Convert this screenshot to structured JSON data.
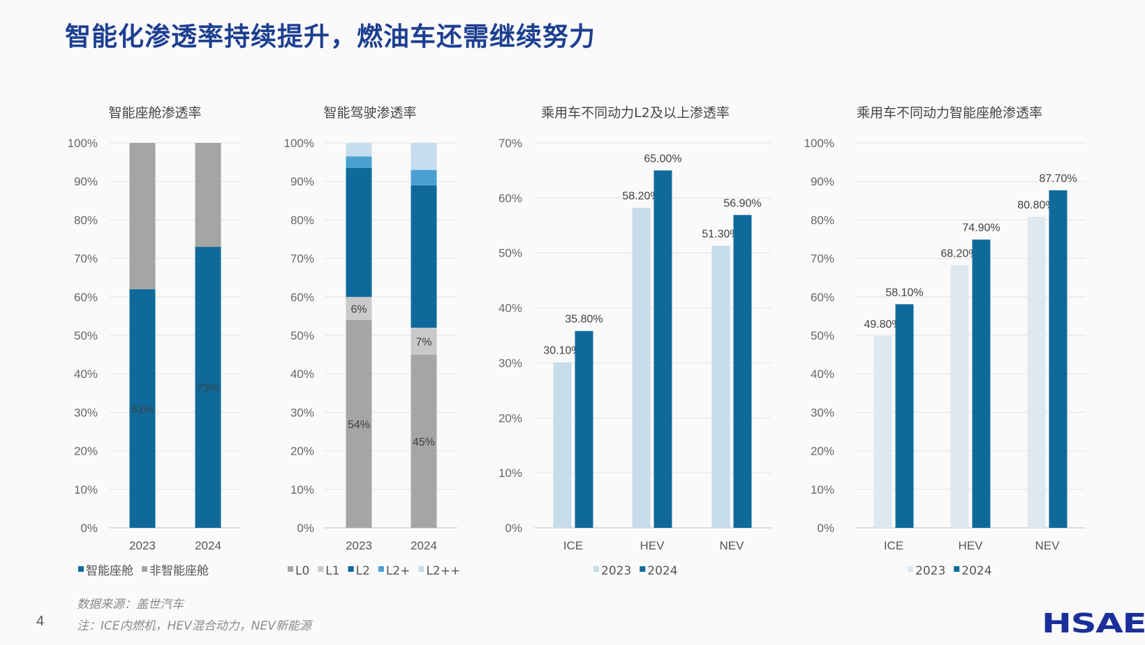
{
  "title": "智能化渗透率持续提升，燃油车还需继续努力",
  "page_number": "4",
  "source": "数据来源：盖世汽车",
  "note": "注：ICE内燃机，HEV混合动力，NEV新能源",
  "logo": "HSAE",
  "chart_data": [
    {
      "type": "bar",
      "stacked": true,
      "title": "智能座舱渗透率",
      "categories": [
        "2023",
        "2024"
      ],
      "ylim": [
        0,
        100
      ],
      "yticks": [
        "0%",
        "10%",
        "20%",
        "30%",
        "40%",
        "50%",
        "60%",
        "70%",
        "80%",
        "90%",
        "100%"
      ],
      "series": [
        {
          "name": "智能座舱",
          "values": [
            62,
            73
          ],
          "labels": [
            "62%",
            "73%"
          ],
          "color": "#0f6a9b"
        },
        {
          "name": "非智能座舱",
          "values": [
            38,
            27
          ],
          "labels": [
            "",
            ""
          ],
          "color": "#a5a5a5"
        }
      ],
      "legend": "bottom"
    },
    {
      "type": "bar",
      "stacked": true,
      "title": "智能驾驶渗透率",
      "categories": [
        "2023",
        "2024"
      ],
      "ylim": [
        0,
        100
      ],
      "yticks": [
        "0%",
        "10%",
        "20%",
        "30%",
        "40%",
        "50%",
        "60%",
        "70%",
        "80%",
        "90%",
        "100%"
      ],
      "series": [
        {
          "name": "L0",
          "values": [
            54,
            45
          ],
          "labels": [
            "54%",
            "45%"
          ],
          "color": "#a5a5a5"
        },
        {
          "name": "L1",
          "values": [
            6,
            7
          ],
          "labels": [
            "6%",
            "7%"
          ],
          "color": "#c9c9c9"
        },
        {
          "name": "L2",
          "values": [
            33.5,
            37
          ],
          "labels": [
            "",
            ""
          ],
          "color": "#0f6a9b"
        },
        {
          "name": "L2+",
          "values": [
            3,
            4
          ],
          "labels": [
            "",
            ""
          ],
          "color": "#4aa0d2"
        },
        {
          "name": "L2++",
          "values": [
            3.5,
            7
          ],
          "labels": [
            "",
            ""
          ],
          "color": "#c6dded"
        }
      ],
      "legend": "bottom"
    },
    {
      "type": "bar",
      "stacked": false,
      "title": "乘用车不同动力L2及以上渗透率",
      "categories": [
        "ICE",
        "HEV",
        "NEV"
      ],
      "ylim": [
        0,
        70
      ],
      "yticks": [
        "0%",
        "10%",
        "20%",
        "30%",
        "40%",
        "50%",
        "60%",
        "70%"
      ],
      "series": [
        {
          "name": "2023",
          "values": [
            30.1,
            58.2,
            51.3
          ],
          "labels": [
            "30.10%",
            "58.20%",
            "51.30%"
          ],
          "color": "#c6dcea"
        },
        {
          "name": "2024",
          "values": [
            35.8,
            65.0,
            56.9
          ],
          "labels": [
            "35.80%",
            "65.00%",
            "56.90%"
          ],
          "color": "#0f6a9b"
        }
      ],
      "legend": "bottom"
    },
    {
      "type": "bar",
      "stacked": false,
      "title": "乘用车不同动力智能座舱渗透率",
      "categories": [
        "ICE",
        "HEV",
        "NEV"
      ],
      "ylim": [
        0,
        100
      ],
      "yticks": [
        "0%",
        "10%",
        "20%",
        "30%",
        "40%",
        "50%",
        "60%",
        "70%",
        "80%",
        "90%",
        "100%"
      ],
      "series": [
        {
          "name": "2023",
          "values": [
            49.8,
            68.2,
            80.8
          ],
          "labels": [
            "49.80%",
            "68.20%",
            "80.80%"
          ],
          "color": "#dde8f1"
        },
        {
          "name": "2024",
          "values": [
            58.1,
            74.9,
            87.7
          ],
          "labels": [
            "58.10%",
            "74.90%",
            "87.70%"
          ],
          "color": "#0f6a9b"
        }
      ],
      "legend": "bottom"
    }
  ]
}
